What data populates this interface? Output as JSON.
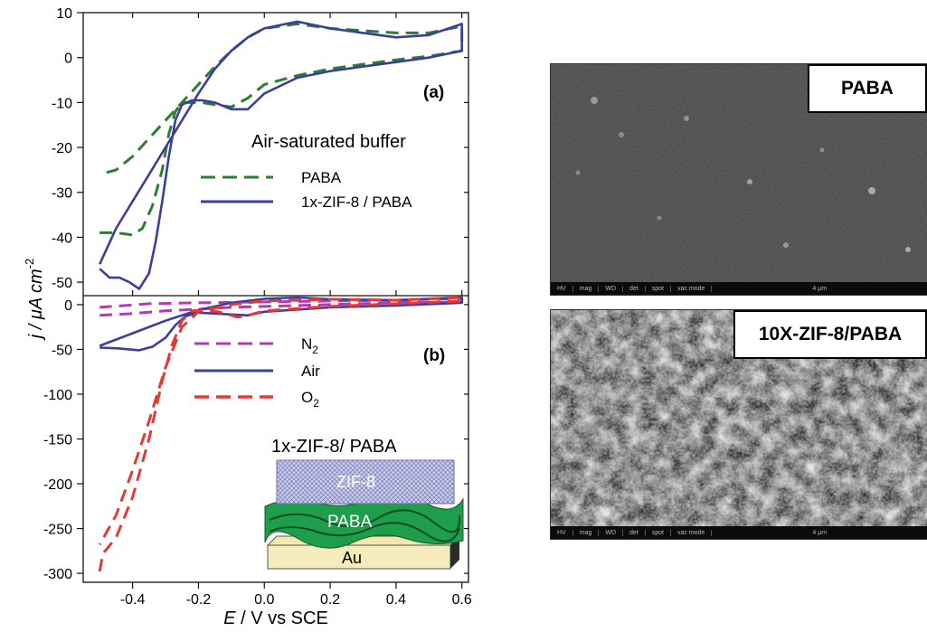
{
  "chart_data": [
    {
      "type": "line",
      "panel_label": "(a)",
      "condition": "Air-saturated buffer",
      "ylabel": "j / μA cm-2",
      "xlim": [
        -0.55,
        0.62
      ],
      "ylim": [
        -53,
        10
      ],
      "yticks": [
        10,
        0,
        -10,
        -20,
        -30,
        -40,
        -50
      ],
      "series": [
        {
          "name": "PABA",
          "color": "#2e7d32",
          "style": "dashed",
          "x": [
            -0.5,
            -0.45,
            -0.4,
            -0.37,
            -0.34,
            -0.31,
            -0.29,
            -0.27,
            -0.25,
            -0.22,
            -0.19,
            -0.15,
            -0.1,
            -0.05,
            0.0,
            0.1,
            0.2,
            0.3,
            0.4,
            0.5,
            0.6,
            0.6,
            0.5,
            0.4,
            0.3,
            0.2,
            0.1,
            0.0,
            -0.05,
            -0.1,
            -0.15,
            -0.2,
            -0.25,
            -0.3,
            -0.35,
            -0.4,
            -0.45,
            -0.5
          ],
          "y": [
            -39,
            -39,
            -39.5,
            -38,
            -33,
            -25,
            -17,
            -12,
            -10,
            -10,
            -10,
            -10.5,
            -11,
            -9,
            -6,
            -4,
            -2.5,
            -1.5,
            -0.5,
            0.3,
            1.5,
            7,
            5.5,
            5.5,
            6,
            6.5,
            7.5,
            6.5,
            4.5,
            1.5,
            -2,
            -6,
            -10,
            -14,
            -18,
            -22,
            -25,
            -26
          ]
        },
        {
          "name": "1x-ZIF-8 / PABA",
          "color": "#3a3f9e",
          "style": "solid",
          "x": [
            -0.5,
            -0.47,
            -0.44,
            -0.41,
            -0.38,
            -0.35,
            -0.33,
            -0.31,
            -0.29,
            -0.27,
            -0.25,
            -0.22,
            -0.19,
            -0.15,
            -0.1,
            -0.05,
            0.0,
            0.1,
            0.2,
            0.3,
            0.4,
            0.5,
            0.6,
            0.6,
            0.5,
            0.4,
            0.3,
            0.2,
            0.1,
            0.0,
            -0.05,
            -0.1,
            -0.15,
            -0.2,
            -0.25,
            -0.3,
            -0.35,
            -0.4,
            -0.45,
            -0.5
          ],
          "y": [
            -47,
            -49,
            -49,
            -50,
            -51.5,
            -48,
            -41,
            -32,
            -22,
            -14,
            -10.5,
            -9.5,
            -9.5,
            -10,
            -11.5,
            -11.5,
            -8,
            -4.5,
            -3,
            -2,
            -1,
            0,
            1.5,
            7.5,
            5,
            4.5,
            5.5,
            6.5,
            8,
            6.5,
            4.5,
            1.5,
            -2.5,
            -8,
            -14,
            -20,
            -26,
            -32,
            -38,
            -46
          ]
        }
      ]
    },
    {
      "type": "line",
      "panel_label": "(b)",
      "xlabel": "E / V vs SCE",
      "xlim": [
        -0.55,
        0.62
      ],
      "ylim": [
        -310,
        10
      ],
      "xticks": [
        -0.4,
        -0.2,
        0.0,
        0.2,
        0.4,
        0.6
      ],
      "xtick_labels": [
        "-0.4",
        "-0.2",
        "0.0",
        "0.2",
        "0.4",
        "0.6"
      ],
      "yticks": [
        0,
        -50,
        -100,
        -150,
        -200,
        -250,
        -300
      ],
      "series": [
        {
          "name": "N2",
          "color": "#b23ab3",
          "style": "dashed",
          "x": [
            -0.5,
            -0.4,
            -0.3,
            -0.2,
            -0.1,
            0.0,
            0.2,
            0.4,
            0.6,
            0.6,
            0.4,
            0.2,
            0.0,
            -0.2,
            -0.35,
            -0.5
          ],
          "y": [
            -12,
            -10,
            -7,
            -5,
            -3,
            -2,
            0,
            2,
            3,
            7,
            5,
            4,
            3,
            2,
            1,
            -3
          ]
        },
        {
          "name": "Air",
          "color": "#3a3f9e",
          "style": "solid",
          "x": [
            -0.5,
            -0.44,
            -0.38,
            -0.34,
            -0.3,
            -0.27,
            -0.24,
            -0.2,
            -0.15,
            -0.1,
            -0.05,
            0.0,
            0.2,
            0.4,
            0.6,
            0.6,
            0.4,
            0.2,
            0.1,
            0.0,
            -0.1,
            -0.2,
            -0.3,
            -0.4,
            -0.5
          ],
          "y": [
            -48,
            -49,
            -51,
            -47,
            -37,
            -23,
            -13,
            -9,
            -10,
            -11,
            -12,
            -8,
            -3,
            -1,
            2,
            8,
            5,
            6,
            8,
            6.5,
            2,
            -6,
            -18,
            -32,
            -46
          ]
        },
        {
          "name": "O2",
          "color": "#e53935",
          "style": "dashed",
          "x": [
            -0.5,
            -0.49,
            -0.45,
            -0.4,
            -0.35,
            -0.31,
            -0.28,
            -0.25,
            -0.22,
            -0.18,
            -0.14,
            -0.08,
            -0.05,
            0.0,
            0.2,
            0.4,
            0.6,
            0.6,
            0.4,
            0.2,
            0.0,
            -0.1,
            -0.2,
            -0.25,
            -0.3,
            -0.35,
            -0.4,
            -0.45,
            -0.5
          ],
          "y": [
            -298,
            -278,
            -260,
            -215,
            -150,
            -85,
            -45,
            -18,
            -7,
            -6,
            -8,
            -14,
            -12,
            -7,
            -2,
            1,
            4,
            8,
            5,
            6,
            4,
            0,
            -8,
            -25,
            -70,
            -130,
            -185,
            -235,
            -268
          ]
        }
      ],
      "inset": {
        "title": "1x-ZIF-8/ PABA",
        "layers": [
          "ZIF-8",
          "PABA",
          "Au"
        ]
      }
    }
  ],
  "figure": {
    "ylabel_shared": "j / μA cm-2",
    "ylabel_parts": {
      "main": "j / μA cm",
      "sup": "-2"
    },
    "xlabel_parts": {
      "italic": "E",
      "rest": " / V vs SCE"
    },
    "legend_a": {
      "paba": "PABA",
      "zif": "1x-ZIF-8 / PABA"
    },
    "legend_b": {
      "n2_main": "N",
      "n2_sub": "2",
      "air": "Air",
      "o2_main": "O",
      "o2_sub": "2"
    }
  },
  "sem_images": [
    {
      "label": "PABA",
      "scalebar": "4 μm"
    },
    {
      "label": "10X-ZIF-8/PABA",
      "scalebar": "4 μm"
    }
  ],
  "sem_bar_fields": [
    "HV",
    "mag",
    "WD",
    "det",
    "spot",
    "vac mode"
  ]
}
